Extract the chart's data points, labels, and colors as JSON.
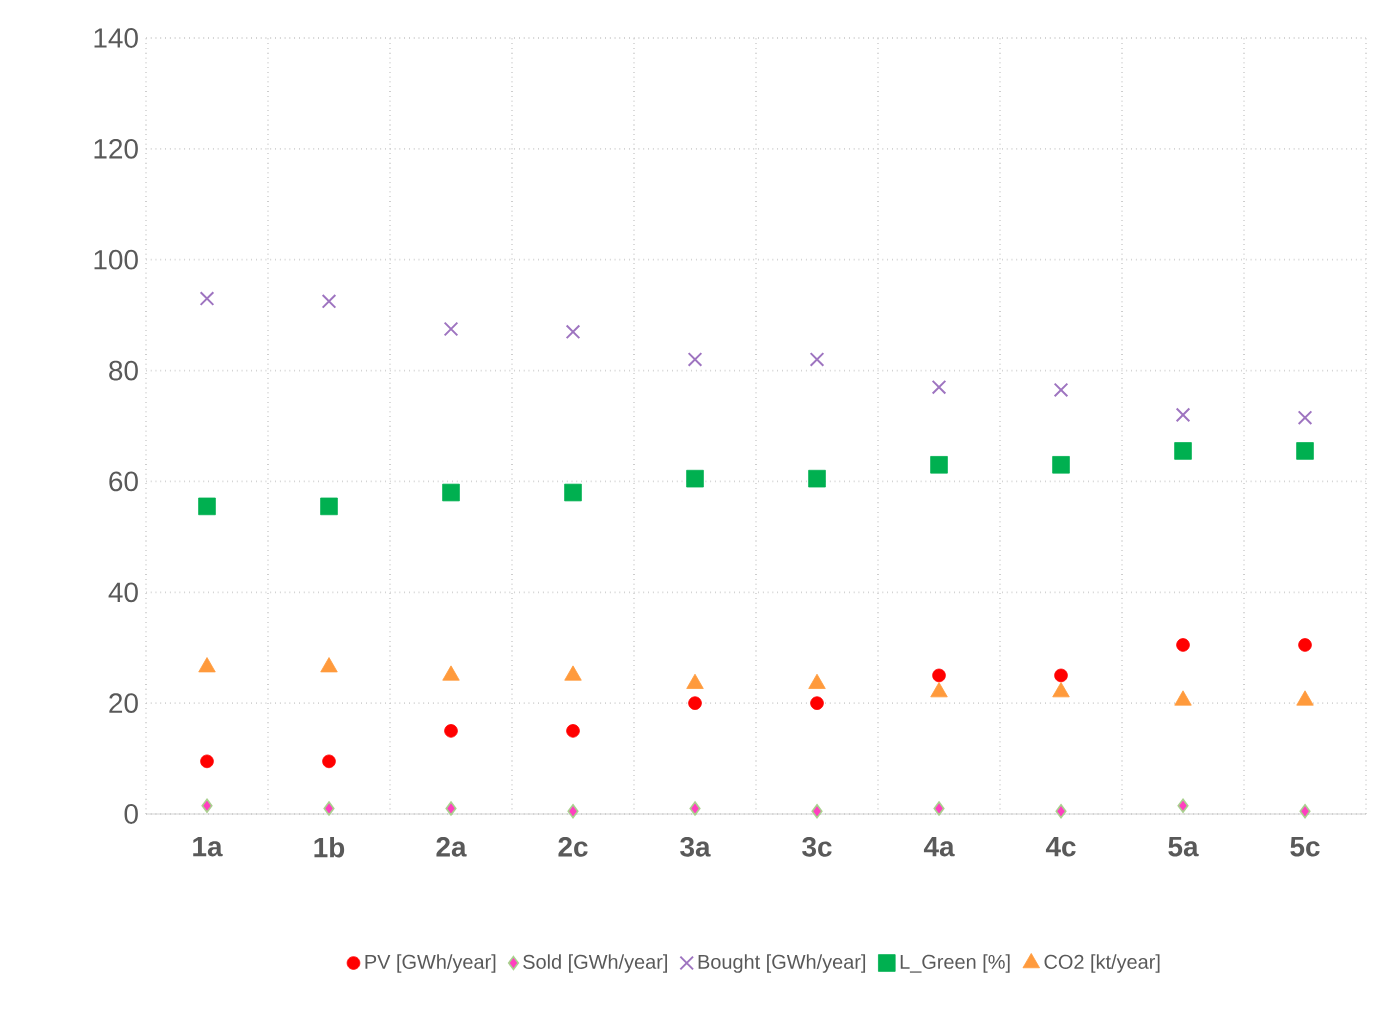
{
  "chart_data": {
    "type": "scatter",
    "categories": [
      "1a",
      "1b",
      "2a",
      "2c",
      "3a",
      "3c",
      "4a",
      "4c",
      "5a",
      "5c"
    ],
    "series": [
      {
        "name": "PV [GWh/year]",
        "color": "#ff0000",
        "marker": "circle",
        "values": [
          9.5,
          9.5,
          15,
          15,
          20,
          20,
          25,
          25,
          30.5,
          30.5
        ]
      },
      {
        "name": "Sold [GWh/year]",
        "color": "#ff3fbf",
        "marker": "diamond",
        "values": [
          1.5,
          1,
          1,
          0.5,
          1,
          0.5,
          1,
          0.5,
          1.5,
          0.5
        ]
      },
      {
        "name": "Bought [GWh/year]",
        "color": "#9e74c0",
        "marker": "cross",
        "values": [
          93,
          92.5,
          87.5,
          87,
          82,
          82,
          77,
          76.5,
          72,
          71.5
        ]
      },
      {
        "name": "L_Green [%]",
        "color": "#00b050",
        "marker": "square",
        "values": [
          55.5,
          55.5,
          58,
          58,
          60.5,
          60.5,
          63,
          63,
          65.5,
          65.5
        ]
      },
      {
        "name": "CO2 [kt/year]",
        "color": "#ff9a3c",
        "marker": "triangle",
        "values": [
          26.5,
          26.5,
          25,
          25,
          23.5,
          23.5,
          22,
          22,
          20.5,
          20.5
        ]
      }
    ],
    "ylim": [
      0,
      140
    ],
    "yticks": [
      0,
      20,
      40,
      60,
      80,
      100,
      120,
      140
    ],
    "grid": true,
    "legend": "bottom"
  }
}
